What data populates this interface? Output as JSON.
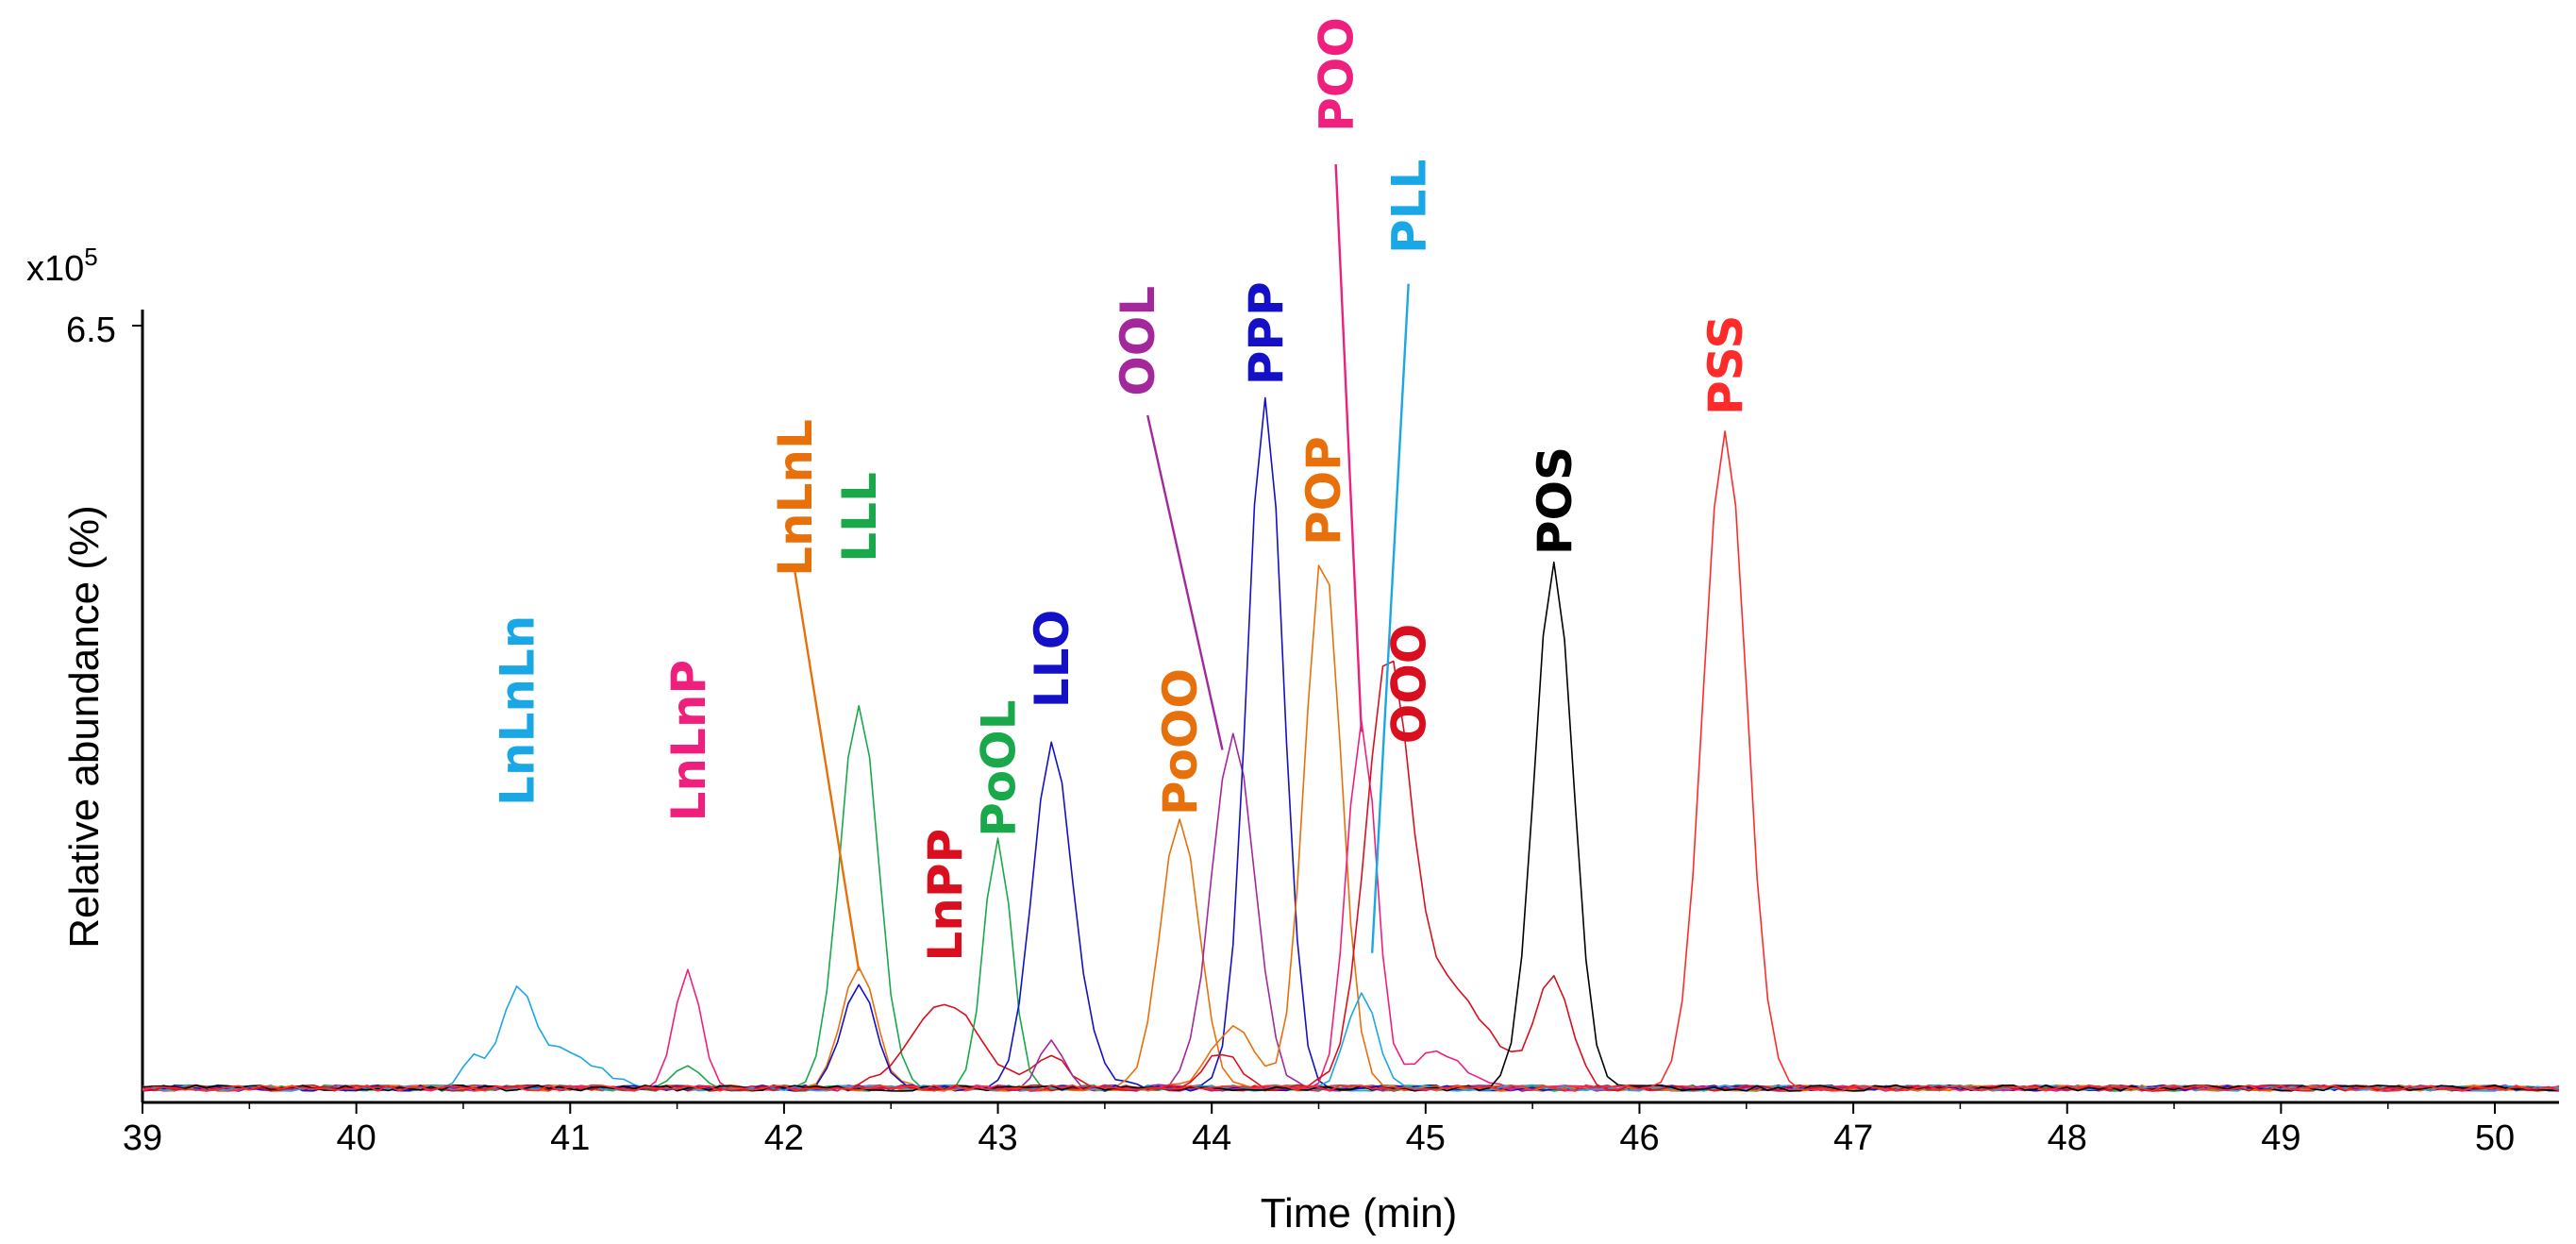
{
  "chart_data": {
    "type": "line",
    "xlabel": "Time (min)",
    "ylabel": "Relative abundance (%)",
    "y_scale_label": "x10",
    "y_scale_exp": "5",
    "y_max_label": "6.5",
    "xlim": [
      39,
      50.3
    ],
    "ylim": [
      0,
      6.5
    ],
    "x_ticks": [
      "39",
      "40",
      "41",
      "42",
      "43",
      "44",
      "45",
      "46",
      "47",
      "48",
      "49",
      "50"
    ],
    "baseline": 0.12,
    "series": [
      {
        "name": "LnLnLn",
        "color": "#1aa7e6",
        "peaks": [
          {
            "x": 40.55,
            "h": 0.27,
            "w": 0.05
          },
          {
            "x": 40.75,
            "h": 0.72,
            "w": 0.07
          },
          {
            "x": 40.95,
            "h": 0.32,
            "w": 0.16
          }
        ],
        "label_x": 40.75,
        "label_y": 2.48,
        "leader": null
      },
      {
        "name": "LnLnP",
        "color": "#ee1f7d",
        "peaks": [
          {
            "x": 41.55,
            "h": 1.0,
            "w": 0.06
          }
        ],
        "label_x": 41.55,
        "label_y": 2.35,
        "leader": null
      },
      {
        "name": "LnLnL",
        "color": "#e8700a",
        "peaks": [
          {
            "x": 42.35,
            "h": 1.0,
            "w": 0.08
          }
        ],
        "label_x": 42.05,
        "label_y": 4.4,
        "leader": [
          [
            42.05,
            4.45
          ],
          [
            42.35,
            1.1
          ]
        ]
      },
      {
        "name": "LLL",
        "color": "#19a84a",
        "peaks": [
          {
            "x": 41.55,
            "h": 0.2,
            "w": 0.06
          },
          {
            "x": 42.35,
            "h": 3.2,
            "w": 0.09
          }
        ],
        "label_x": 42.35,
        "label_y": 4.52,
        "leader": null
      },
      {
        "name": "LnPP",
        "color": "#d90f1f",
        "peaks": [
          {
            "x": 42.75,
            "h": 0.72,
            "w": 0.16
          },
          {
            "x": 43.25,
            "h": 0.25,
            "w": 0.08
          }
        ],
        "label_x": 42.75,
        "label_y": 1.18,
        "leader": null
      },
      {
        "name": "PoOL",
        "color": "#19a84a",
        "peaks": [
          {
            "x": 43.0,
            "h": 2.1,
            "w": 0.065
          }
        ],
        "label_x": 43.0,
        "label_y": 2.22,
        "leader": null
      },
      {
        "name": "LLO",
        "color": "#1410c8",
        "peaks": [
          {
            "x": 42.35,
            "h": 0.85,
            "w": 0.08
          },
          {
            "x": 43.25,
            "h": 2.8,
            "w": 0.09
          },
          {
            "x": 43.4,
            "h": 0.25,
            "w": 0.1
          }
        ],
        "label_x": 43.25,
        "label_y": 3.3,
        "leader": null
      },
      {
        "name": "PoOO",
        "color": "#e8700a",
        "peaks": [
          {
            "x": 43.85,
            "h": 2.25,
            "w": 0.09
          }
        ],
        "label_x": 43.85,
        "label_y": 2.4,
        "leader": null
      },
      {
        "name": "OOL",
        "color": "#a3289b",
        "peaks": [
          {
            "x": 43.25,
            "h": 0.4,
            "w": 0.06
          },
          {
            "x": 44.1,
            "h": 2.95,
            "w": 0.1
          }
        ],
        "label_x": 43.65,
        "label_y": 5.91,
        "leader": [
          [
            43.7,
            5.75
          ],
          [
            44.05,
            2.95
          ]
        ]
      },
      {
        "name": "PPP",
        "color": "#1410c8",
        "peaks": [
          {
            "x": 44.25,
            "h": 5.8,
            "w": 0.085
          }
        ],
        "label_x": 44.25,
        "label_y": 6.0,
        "leader": null
      },
      {
        "name": "POP",
        "color": "#e8700a",
        "peaks": [
          {
            "x": 44.1,
            "h": 0.5,
            "w": 0.1
          },
          {
            "x": 44.52,
            "h": 4.5,
            "w": 0.085
          }
        ],
        "label_x": 44.52,
        "label_y": 4.66,
        "leader": null
      },
      {
        "name": "POO",
        "color": "#ee1f7d",
        "peaks": [
          {
            "x": 44.7,
            "h": 3.05,
            "w": 0.07
          },
          {
            "x": 45.05,
            "h": 0.3,
            "w": 0.12
          }
        ],
        "label_x": 44.58,
        "label_y": 8.12,
        "leader": [
          [
            44.58,
            7.85
          ],
          [
            44.7,
            3.1
          ]
        ]
      },
      {
        "name": "PLL",
        "color": "#1aa7e6",
        "peaks": [
          {
            "x": 44.7,
            "h": 0.8,
            "w": 0.07
          }
        ],
        "label_x": 44.92,
        "label_y": 7.1,
        "leader": [
          [
            44.92,
            6.85
          ],
          [
            44.75,
            1.25
          ]
        ]
      },
      {
        "name": "OOO",
        "color": "#d90f1f",
        "peaks": [
          {
            "x": 44.05,
            "h": 0.3,
            "w": 0.08
          },
          {
            "x": 44.82,
            "h": 3.1,
            "w": 0.1
          },
          {
            "x": 45.05,
            "h": 0.9,
            "w": 0.22
          },
          {
            "x": 45.6,
            "h": 0.9,
            "w": 0.08
          }
        ],
        "label_x": 44.92,
        "label_y": 3.0,
        "leader": null
      },
      {
        "name": "POS",
        "color": "#000000",
        "peaks": [
          {
            "x": 45.6,
            "h": 4.4,
            "w": 0.09
          }
        ],
        "label_x": 45.6,
        "label_y": 4.58,
        "leader": null
      },
      {
        "name": "PSS",
        "color": "#ff2a2a",
        "peaks": [
          {
            "x": 46.4,
            "h": 5.5,
            "w": 0.1
          }
        ],
        "label_x": 46.4,
        "label_y": 5.75,
        "leader": null
      }
    ]
  }
}
